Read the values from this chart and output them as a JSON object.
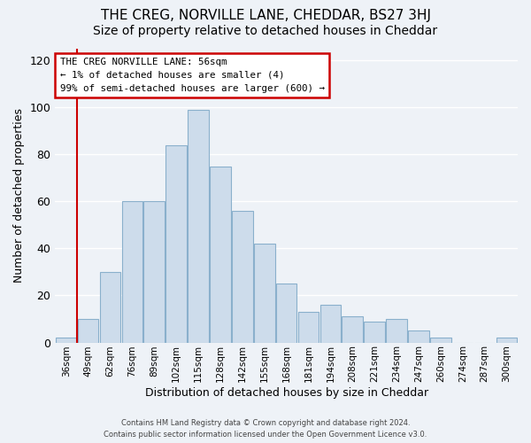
{
  "title": "THE CREG, NORVILLE LANE, CHEDDAR, BS27 3HJ",
  "subtitle": "Size of property relative to detached houses in Cheddar",
  "xlabel": "Distribution of detached houses by size in Cheddar",
  "ylabel": "Number of detached properties",
  "bar_labels": [
    "36sqm",
    "49sqm",
    "62sqm",
    "76sqm",
    "89sqm",
    "102sqm",
    "115sqm",
    "128sqm",
    "142sqm",
    "155sqm",
    "168sqm",
    "181sqm",
    "194sqm",
    "208sqm",
    "221sqm",
    "234sqm",
    "247sqm",
    "260sqm",
    "274sqm",
    "287sqm",
    "300sqm"
  ],
  "bar_values": [
    2,
    10,
    30,
    60,
    60,
    84,
    99,
    75,
    56,
    42,
    25,
    13,
    16,
    11,
    9,
    10,
    5,
    2,
    0,
    0,
    2
  ],
  "bar_color": "#cddceb",
  "bar_edge_color": "#8ab0cc",
  "annotation_text_line1": "THE CREG NORVILLE LANE: 56sqm",
  "annotation_text_line2": "← 1% of detached houses are smaller (4)",
  "annotation_text_line3": "99% of semi-detached houses are larger (600) →",
  "annotation_box_color": "#ffffff",
  "annotation_box_edge": "#cc0000",
  "vertical_line_color": "#cc0000",
  "vertical_line_x": 0.5,
  "ylim": [
    0,
    125
  ],
  "yticks": [
    0,
    20,
    40,
    60,
    80,
    100,
    120
  ],
  "footer_line1": "Contains HM Land Registry data © Crown copyright and database right 2024.",
  "footer_line2": "Contains public sector information licensed under the Open Government Licence v3.0.",
  "bg_color": "#eef2f7",
  "grid_color": "#ffffff",
  "title_fontsize": 11,
  "subtitle_fontsize": 10
}
